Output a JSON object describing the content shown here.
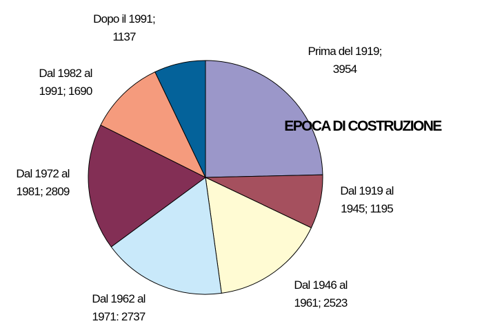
{
  "chart_data": {
    "type": "pie",
    "title": "EPOCA DI COSTRUZIONE",
    "values": [
      3954,
      1195,
      2523,
      2737,
      2809,
      1690,
      1137
    ],
    "value_labels": [
      "Prima del 1919; 3954",
      "Dal 1919 al 1945; 1195",
      "Dal 1946 al 1961; 2523",
      "Dal 1962 al 1971: 2737",
      "Dal 1972 al 1981; 2809",
      "Dal 1982 al 1991; 1690",
      "Dopo il 1991; 1137"
    ],
    "colors": [
      "#9b97c9",
      "#a5505e",
      "#fffbd3",
      "#c9e9fa",
      "#832f55",
      "#f59b7d",
      "#04629a"
    ]
  }
}
